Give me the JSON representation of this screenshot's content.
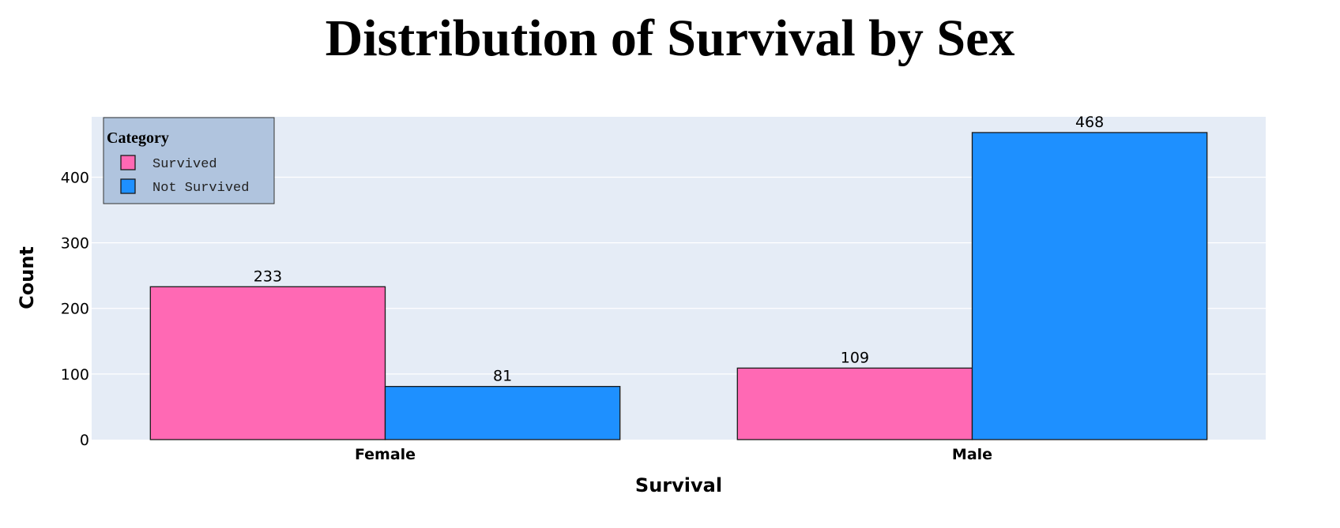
{
  "chart_data": {
    "type": "bar",
    "title": "Distribution of Survival by Sex",
    "xlabel": "Survival",
    "ylabel": "Count",
    "categories": [
      "Female",
      "Male"
    ],
    "series": [
      {
        "name": "Survived",
        "values": [
          233,
          109
        ],
        "color": "#FF69B4"
      },
      {
        "name": "Not Survived",
        "values": [
          81,
          468
        ],
        "color": "#1E90FF"
      }
    ],
    "ylim": [
      0,
      492
    ],
    "yticks": [
      0,
      100,
      200,
      300,
      400
    ],
    "grid": true,
    "legend": {
      "title": "Category",
      "position": "top-left"
    },
    "plot_background": "#E5ECF6",
    "legend_background": "#B0C4DE"
  }
}
